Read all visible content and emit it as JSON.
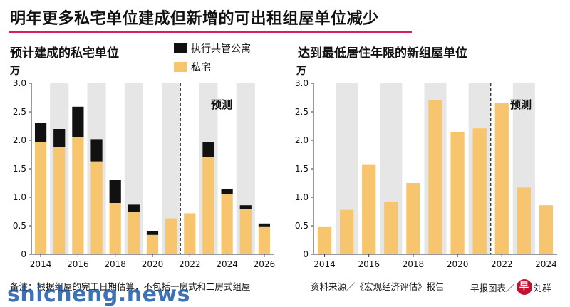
{
  "header": {
    "title": "明年更多私宅单位建成但新增的可出租组屋单位减少"
  },
  "colors": {
    "private": "#f7c56d",
    "ec": "#111111",
    "shade": "#e6e6e6",
    "accent": "#d81f5c"
  },
  "footer": {
    "note": "备注：根据组屋的完工日期估算，不包括一房式和二房式组屋",
    "source": "资料来源／《宏观经济评估》报告",
    "credit_left": "早报图表／",
    "logo": "早",
    "credit_right": "刘群",
    "watermark": "shicheng.news"
  },
  "chart_data": [
    {
      "type": "bar",
      "stacked": true,
      "title": "预计建成的私宅单位",
      "ylabel": "万",
      "ylim": [
        0,
        3.0
      ],
      "yticks": [
        "0",
        "0.5",
        "1.0",
        "1.5",
        "2.0",
        "2.5",
        "3.0"
      ],
      "x": [
        2014,
        2015,
        2016,
        2017,
        2018,
        2019,
        2020,
        2021,
        2022,
        2023,
        2024,
        2025,
        2026
      ],
      "xtick_labels": [
        "2014",
        "2016",
        "2018",
        "2020",
        "2022",
        "2024",
        "2026"
      ],
      "forecast_label": "预测",
      "forecast_from": 2021.5,
      "shaded_years": [
        2015,
        2017,
        2019,
        2021,
        2023,
        2025
      ],
      "legend": "top",
      "series": [
        {
          "name": "私宅",
          "color": "#f7c56d",
          "values": [
            1.97,
            1.88,
            2.06,
            1.63,
            0.9,
            0.74,
            0.34,
            0.63,
            0.72,
            1.71,
            1.06,
            0.8,
            0.49
          ]
        },
        {
          "name": "执行共管公寓",
          "color": "#111111",
          "values": [
            0.33,
            0.32,
            0.53,
            0.39,
            0.4,
            0.13,
            0.06,
            0.0,
            0.0,
            0.26,
            0.09,
            0.06,
            0.05
          ]
        }
      ]
    },
    {
      "type": "bar",
      "title": "达到最低居住年限的新组屋单位",
      "ylabel": "万",
      "ylim": [
        0,
        3.0
      ],
      "yticks": [
        "0",
        "0.5",
        "1.0",
        "1.5",
        "2.0",
        "2.5",
        "3.0"
      ],
      "x": [
        2014,
        2015,
        2016,
        2017,
        2018,
        2019,
        2020,
        2021,
        2022,
        2023,
        2024
      ],
      "xtick_labels": [
        "2014",
        "2016",
        "2018",
        "2020",
        "2022",
        "2024"
      ],
      "forecast_label": "预测",
      "forecast_from": 2021.5,
      "shaded_years": [
        2015,
        2017,
        2019,
        2021,
        2023
      ],
      "series": [
        {
          "color": "#f7c56d",
          "values": [
            0.49,
            0.78,
            1.58,
            0.92,
            1.25,
            2.71,
            2.15,
            2.21,
            2.65,
            1.17,
            0.86
          ]
        }
      ]
    }
  ]
}
